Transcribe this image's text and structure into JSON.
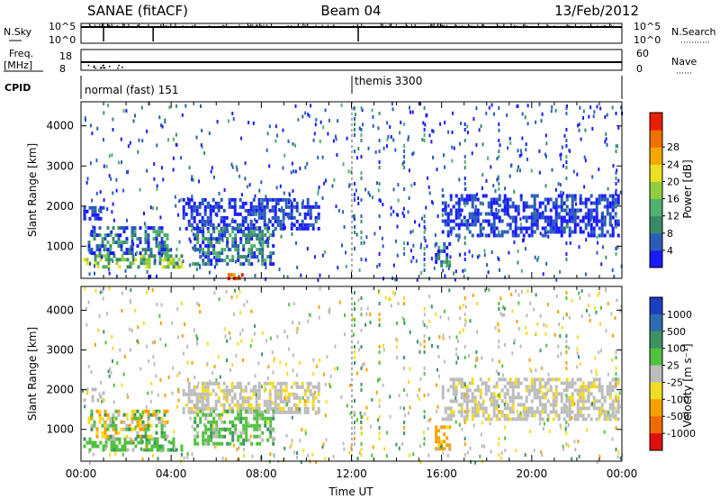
{
  "header": {
    "station": "SANAE (fitACF)",
    "beam": "Beam 04",
    "date": "13/Feb/2012"
  },
  "top_panels": {
    "nsky_label": "N.Sky",
    "nsearch_label": "N.Search",
    "scale_hi": "10^5",
    "scale_lo": "10^0",
    "freq_label": "Freq.",
    "freq_unit": "[MHz]",
    "freq_ticks": [
      "18",
      "8"
    ],
    "nave_label": "Nave",
    "nave_ticks": [
      "60",
      "0"
    ],
    "cpid_label": "CPID",
    "cpid_segments": [
      {
        "label": "normal (fast) 151",
        "start_hour": 0
      },
      {
        "label": "themis 3300",
        "start_hour": 12
      }
    ]
  },
  "chart_data": [
    {
      "type": "heatmap",
      "title": "",
      "ylabel": "Slant Range [km]",
      "xlabel": "",
      "xlim": [
        0,
        24
      ],
      "ylim": [
        200,
        4600
      ],
      "yticks": [
        1000,
        2000,
        3000,
        4000
      ],
      "colorbar": {
        "label": "Power [dB]",
        "ticks": [
          "4",
          "8",
          "12",
          "16",
          "20",
          "24",
          "28"
        ],
        "colors": [
          "#1a1aff",
          "#2a5db8",
          "#3a8a68",
          "#4fb070",
          "#8fcf3f",
          "#e8e020",
          "#f5a800",
          "#f07000",
          "#e82000"
        ]
      },
      "regions": [
        {
          "t0": 0.1,
          "t1": 4.5,
          "r0": 450,
          "r1": 800,
          "level": "high"
        },
        {
          "t0": 0.3,
          "t1": 3.8,
          "r0": 800,
          "r1": 1500,
          "level": "mid"
        },
        {
          "t0": 0.1,
          "t1": 1.0,
          "r0": 1650,
          "r1": 2000,
          "level": "low"
        },
        {
          "t0": 4.5,
          "t1": 10.5,
          "r0": 1400,
          "r1": 2200,
          "level": "low"
        },
        {
          "t0": 5.0,
          "t1": 8.5,
          "r0": 600,
          "r1": 1500,
          "level": "mid"
        },
        {
          "t0": 6.5,
          "t1": 7.2,
          "r0": 220,
          "r1": 330,
          "level": "hot"
        },
        {
          "t0": 15.7,
          "t1": 16.3,
          "r0": 550,
          "r1": 1100,
          "level": "mid"
        },
        {
          "t0": 16.0,
          "t1": 23.8,
          "r0": 1300,
          "r1": 2300,
          "level": "low"
        }
      ]
    },
    {
      "type": "heatmap",
      "title": "",
      "ylabel": "Slant Range [km]",
      "xlabel": "Time UT",
      "xlim": [
        0,
        24
      ],
      "ylim": [
        200,
        4600
      ],
      "xticks": [
        "00:00",
        "04:00",
        "08:00",
        "12:00",
        "16:00",
        "20:00",
        "00:00"
      ],
      "yticks": [
        1000,
        2000,
        3000,
        4000
      ],
      "colorbar": {
        "label": "Velocity [m s⁻¹]",
        "ticks": [
          "1000",
          "500",
          "100",
          "25",
          "-25",
          "-100",
          "-500",
          "-1000"
        ],
        "colors": [
          "#1a3fc0",
          "#2f6bb0",
          "#3c9460",
          "#52c040",
          "#bcbcbc",
          "#f2dc20",
          "#f5a000",
          "#f06a00",
          "#e01010"
        ]
      },
      "regions": [
        {
          "t0": 0.1,
          "t1": 4.5,
          "r0": 450,
          "r1": 800,
          "level": "green"
        },
        {
          "t0": 0.3,
          "t1": 3.8,
          "r0": 800,
          "r1": 1500,
          "level": "mixed"
        },
        {
          "t0": 0.1,
          "t1": 1.0,
          "r0": 1750,
          "r1": 2050,
          "level": "grey"
        },
        {
          "t0": 4.5,
          "t1": 10.5,
          "r0": 1400,
          "r1": 2200,
          "level": "grey"
        },
        {
          "t0": 5.0,
          "t1": 8.5,
          "r0": 600,
          "r1": 1500,
          "level": "green"
        },
        {
          "t0": 15.7,
          "t1": 16.3,
          "r0": 550,
          "r1": 1100,
          "level": "orange"
        },
        {
          "t0": 16.0,
          "t1": 23.8,
          "r0": 1300,
          "r1": 2300,
          "level": "grey"
        }
      ]
    }
  ]
}
